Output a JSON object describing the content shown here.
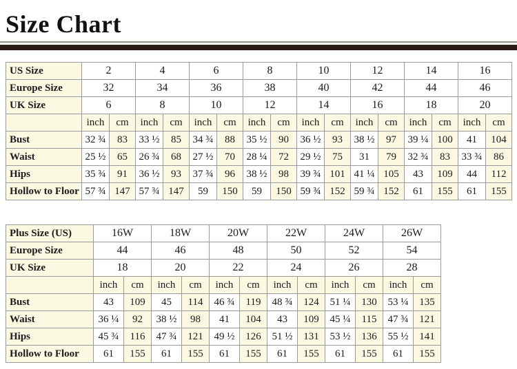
{
  "page": {
    "title": "Size Chart"
  },
  "colors": {
    "cream_cell": "#fcf9e3",
    "white_cell": "#ffffff",
    "grid_border": "#999999",
    "divider_bar": "#2b1d15",
    "text": "#1b1b1b"
  },
  "standard_table": {
    "units": [
      "inch",
      "cm"
    ],
    "size_rows": [
      {
        "label": "US Size",
        "values": [
          "2",
          "4",
          "6",
          "8",
          "10",
          "12",
          "14",
          "16"
        ]
      },
      {
        "label": "Europe Size",
        "values": [
          "32",
          "34",
          "36",
          "38",
          "40",
          "42",
          "44",
          "46"
        ]
      },
      {
        "label": "UK Size",
        "values": [
          "6",
          "8",
          "10",
          "12",
          "14",
          "16",
          "18",
          "20"
        ]
      }
    ],
    "measure_rows": [
      {
        "label": "Bust",
        "values": [
          [
            "32 ¾",
            "83"
          ],
          [
            "33 ½",
            "85"
          ],
          [
            "34 ¾",
            "88"
          ],
          [
            "35 ½",
            "90"
          ],
          [
            "36 ½",
            "93"
          ],
          [
            "38 ½",
            "97"
          ],
          [
            "39 ¼",
            "100"
          ],
          [
            "41",
            "104"
          ]
        ]
      },
      {
        "label": "Waist",
        "values": [
          [
            "25 ½",
            "65"
          ],
          [
            "26 ¾",
            "68"
          ],
          [
            "27 ½",
            "70"
          ],
          [
            "28 ¼",
            "72"
          ],
          [
            "29 ½",
            "75"
          ],
          [
            "31",
            "79"
          ],
          [
            "32 ¾",
            "83"
          ],
          [
            "33 ¾",
            "86"
          ]
        ]
      },
      {
        "label": "Hips",
        "values": [
          [
            "35 ¾",
            "91"
          ],
          [
            "36 ½",
            "93"
          ],
          [
            "37 ¾",
            "96"
          ],
          [
            "38 ½",
            "98"
          ],
          [
            "39 ¾",
            "101"
          ],
          [
            "41 ¼",
            "105"
          ],
          [
            "43",
            "109"
          ],
          [
            "44",
            "112"
          ]
        ]
      },
      {
        "label": "Hollow to Floor",
        "values": [
          [
            "57 ¾",
            "147"
          ],
          [
            "57 ¾",
            "147"
          ],
          [
            "59",
            "150"
          ],
          [
            "59",
            "150"
          ],
          [
            "59 ¾",
            "152"
          ],
          [
            "59 ¾",
            "152"
          ],
          [
            "61",
            "155"
          ],
          [
            "61",
            "155"
          ]
        ]
      }
    ]
  },
  "plus_table": {
    "units": [
      "inch",
      "cm"
    ],
    "size_rows": [
      {
        "label": "Plus Size (US)",
        "values": [
          "16W",
          "18W",
          "20W",
          "22W",
          "24W",
          "26W"
        ]
      },
      {
        "label": "Europe Size",
        "values": [
          "44",
          "46",
          "48",
          "50",
          "52",
          "54"
        ]
      },
      {
        "label": "UK Size",
        "values": [
          "18",
          "20",
          "22",
          "24",
          "26",
          "28"
        ]
      }
    ],
    "measure_rows": [
      {
        "label": "Bust",
        "values": [
          [
            "43",
            "109"
          ],
          [
            "45",
            "114"
          ],
          [
            "46 ¾",
            "119"
          ],
          [
            "48 ¾",
            "124"
          ],
          [
            "51 ¼",
            "130"
          ],
          [
            "53 ¼",
            "135"
          ]
        ]
      },
      {
        "label": "Waist",
        "values": [
          [
            "36 ¼",
            "92"
          ],
          [
            "38 ½",
            "98"
          ],
          [
            "41",
            "104"
          ],
          [
            "43",
            "109"
          ],
          [
            "45 ¼",
            "115"
          ],
          [
            "47 ¾",
            "121"
          ]
        ]
      },
      {
        "label": "Hips",
        "values": [
          [
            "45 ¾",
            "116"
          ],
          [
            "47 ¾",
            "121"
          ],
          [
            "49 ½",
            "126"
          ],
          [
            "51 ½",
            "131"
          ],
          [
            "53 ½",
            "136"
          ],
          [
            "55 ½",
            "141"
          ]
        ]
      },
      {
        "label": "Hollow to Floor",
        "values": [
          [
            "61",
            "155"
          ],
          [
            "61",
            "155"
          ],
          [
            "61",
            "155"
          ],
          [
            "61",
            "155"
          ],
          [
            "61",
            "155"
          ],
          [
            "61",
            "155"
          ]
        ]
      }
    ]
  }
}
